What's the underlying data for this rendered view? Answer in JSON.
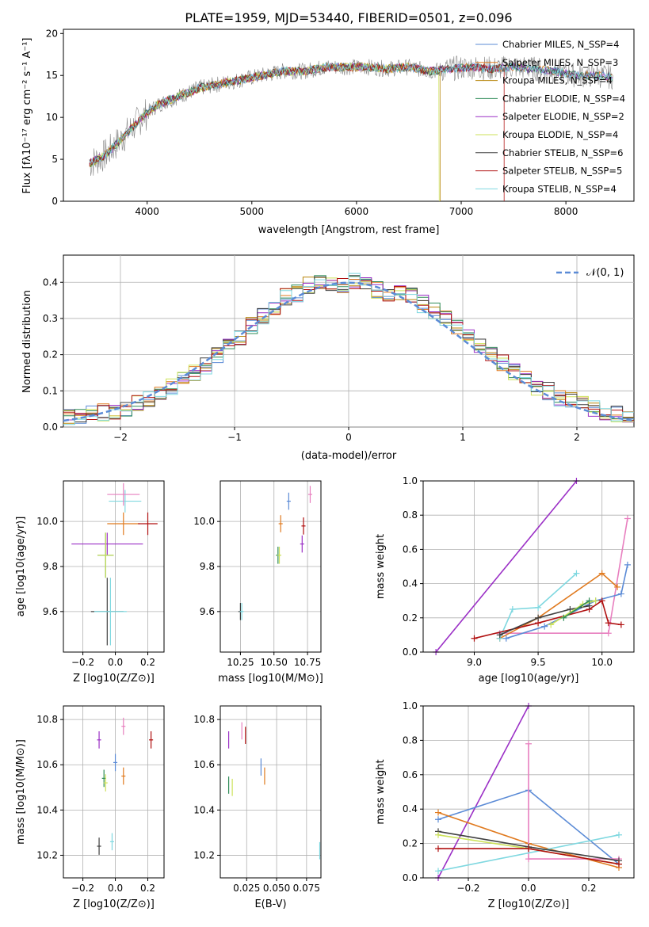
{
  "title": "PLATE=1959, MJD=53440, FIBERID=0501, z=0.096",
  "model_colors": {
    "Chabrier MILES": "#5b8bd6",
    "Salpeter MILES": "#e07a1f",
    "Kroupa MILES": "#b8860b",
    "Chabrier ELODIE": "#2e8b57",
    "Salpeter ELODIE": "#9b30c6",
    "Kroupa ELODIE": "#cde25a",
    "Chabrier STELIB": "#404040",
    "Salpeter STELIB": "#b01010",
    "Kroupa STELIB": "#7fd8e0",
    "Kroupa STELIB (points)": "#e87fbf"
  },
  "chart_data": [
    {
      "type": "line",
      "name": "spectrum",
      "xlabel": "wavelength [Angstrom, rest frame]",
      "ylabel": "Flux [fλ10⁻¹⁷ erg cm⁻² s⁻¹ A⁻¹]",
      "xlim": [
        3200,
        8650
      ],
      "ylim": [
        0,
        20.5
      ],
      "xticks": [
        4000,
        5000,
        6000,
        7000,
        8000
      ],
      "yticks": [
        0,
        5,
        10,
        15,
        20
      ],
      "grid": false,
      "legend_position": "top-right",
      "legend": [
        "Chabrier MILES, N_SSP=4",
        "Salpeter MILES, N_SSP=3",
        "Kroupa MILES, N_SSP=4",
        "Chabrier ELODIE, N_SSP=4",
        "Salpeter ELODIE, N_SSP=2",
        "Kroupa ELODIE, N_SSP=4",
        "Chabrier STELIB, N_SSP=6",
        "Salpeter STELIB, N_SSP=5",
        "Kroupa STELIB, N_SSP=4"
      ],
      "x": [
        3450,
        3600,
        3800,
        3950,
        4100,
        4300,
        4500,
        4700,
        4900,
        5100,
        5300,
        5500,
        5700,
        5900,
        6100,
        6300,
        6500,
        6700,
        6900,
        7100,
        7300,
        7500,
        7700,
        7900,
        8100,
        8300,
        8450
      ],
      "y": [
        4.5,
        5.5,
        8.0,
        10.0,
        11.5,
        12.5,
        13.5,
        14.0,
        14.5,
        15.0,
        15.5,
        15.5,
        16.0,
        16.0,
        16.0,
        15.8,
        16.0,
        15.5,
        15.8,
        16.0,
        15.8,
        16.0,
        15.8,
        15.5,
        15.0,
        15.0,
        14.8
      ]
    },
    {
      "type": "bar",
      "name": "residual histogram",
      "xlabel": "(data-model)/error",
      "ylabel": "Normed distribution",
      "xlim": [
        -2.5,
        2.5
      ],
      "ylim": [
        0,
        0.475
      ],
      "xticks": [
        -2,
        -1,
        0,
        1,
        2
      ],
      "yticks": [
        0.0,
        0.1,
        0.2,
        0.3,
        0.4
      ],
      "grid": true,
      "legend_position": "top-right",
      "legend": [
        "𝒩(0, 1)"
      ],
      "bins": [
        -2.5,
        -2.4,
        -2.3,
        -2.2,
        -2.1,
        -2.0,
        -1.9,
        -1.8,
        -1.7,
        -1.6,
        -1.5,
        -1.4,
        -1.3,
        -1.2,
        -1.1,
        -1.0,
        -0.9,
        -0.8,
        -0.7,
        -0.6,
        -0.5,
        -0.4,
        -0.3,
        -0.2,
        -0.1,
        0.0,
        0.1,
        0.2,
        0.3,
        0.4,
        0.5,
        0.6,
        0.7,
        0.8,
        0.9,
        1.0,
        1.1,
        1.2,
        1.3,
        1.4,
        1.5,
        1.6,
        1.7,
        1.8,
        1.9,
        2.0,
        2.1,
        2.2,
        2.3,
        2.4
      ],
      "density": [
        0.025,
        0.03,
        0.035,
        0.04,
        0.045,
        0.055,
        0.065,
        0.08,
        0.09,
        0.11,
        0.13,
        0.15,
        0.17,
        0.2,
        0.22,
        0.25,
        0.28,
        0.31,
        0.33,
        0.36,
        0.37,
        0.39,
        0.4,
        0.4,
        0.39,
        0.4,
        0.4,
        0.38,
        0.37,
        0.37,
        0.36,
        0.34,
        0.32,
        0.3,
        0.28,
        0.25,
        0.23,
        0.2,
        0.18,
        0.15,
        0.13,
        0.11,
        0.1,
        0.08,
        0.07,
        0.06,
        0.05,
        0.04,
        0.035,
        0.03
      ]
    },
    {
      "type": "scatter",
      "name": "age vs Z",
      "xlabel": "Z [log10(Z/Z⊙)]",
      "ylabel": "age  [log10(age/yr)]",
      "xlim": [
        -0.32,
        0.3
      ],
      "ylim": [
        9.42,
        10.18
      ],
      "xticks": [
        "-0.2",
        "0.0",
        "0.2"
      ],
      "yticks": [
        "9.6",
        "9.8",
        "10.0"
      ],
      "grid": true,
      "points": [
        {
          "model": "Salpeter ELODIE",
          "x": -0.05,
          "y": 9.9,
          "xerr": 0.22,
          "yerr": 0.05
        },
        {
          "model": "Kroupa STELIB",
          "x": 0.06,
          "y": 10.09,
          "xerr": 0.1,
          "yerr": 0.05
        },
        {
          "model": "Kroupa MILES (pink)",
          "x": 0.05,
          "y": 10.12,
          "xerr": 0.1,
          "yerr": 0.05
        },
        {
          "model": "Salpeter MILES",
          "x": 0.05,
          "y": 9.99,
          "xerr": 0.1,
          "yerr": 0.05
        },
        {
          "model": "Salpeter STELIB",
          "x": 0.2,
          "y": 9.99,
          "xerr": 0.06,
          "yerr": 0.05
        },
        {
          "model": "Chabrier ELODIE",
          "x": -0.06,
          "y": 9.85,
          "xerr": 0.05,
          "yerr": 0.1
        },
        {
          "model": "Kroupa ELODIE",
          "x": -0.06,
          "y": 9.85,
          "xerr": 0.05,
          "yerr": 0.1
        },
        {
          "model": "Chabrier STELIB",
          "x": -0.05,
          "y": 9.6,
          "xerr": 0.1,
          "yerr": 0.15
        },
        {
          "model": "Kroupa STELIB (low)",
          "x": -0.03,
          "y": 9.6,
          "xerr": 0.1,
          "yerr": 0.15
        }
      ]
    },
    {
      "type": "scatter",
      "name": "age vs mass",
      "xlabel": "mass [log10(M/M⊙)]",
      "xlim": [
        10.1,
        10.85
      ],
      "ylim": [
        9.42,
        10.18
      ],
      "xticks": [
        "10.25",
        "10.50",
        "10.75"
      ],
      "yticks": [
        "9.6",
        "9.8",
        "10.0"
      ],
      "grid": true,
      "points": [
        {
          "model": "Chabrier STELIB",
          "x": 10.25,
          "y": 9.6
        },
        {
          "model": "Kroupa STELIB",
          "x": 10.26,
          "y": 9.6
        },
        {
          "model": "Chabrier ELODIE",
          "x": 10.53,
          "y": 9.85
        },
        {
          "model": "Kroupa ELODIE",
          "x": 10.54,
          "y": 9.85
        },
        {
          "model": "Salpeter MILES",
          "x": 10.55,
          "y": 9.99
        },
        {
          "model": "Chabrier MILES",
          "x": 10.61,
          "y": 10.09
        },
        {
          "model": "Salpeter STELIB",
          "x": 10.72,
          "y": 9.98
        },
        {
          "model": "Salpeter ELODIE",
          "x": 10.71,
          "y": 9.9
        },
        {
          "model": "Kroupa STELIB (pink)",
          "x": 10.77,
          "y": 10.12
        }
      ]
    },
    {
      "type": "line",
      "name": "mass weight vs age",
      "xlabel": "age  [log10(age/yr)]",
      "ylabel": "mass weight",
      "xlim": [
        8.6,
        10.25
      ],
      "ylim": [
        0,
        1.0
      ],
      "xticks": [
        "9.0",
        "9.5",
        "10.0"
      ],
      "yticks": [
        "0.0",
        "0.2",
        "0.4",
        "0.6",
        "0.8",
        "1.0"
      ],
      "grid": true,
      "series": [
        {
          "model": "Salpeter ELODIE",
          "x": [
            8.7,
            9.8
          ],
          "y": [
            0.0,
            1.0
          ]
        },
        {
          "model": "Kroupa STELIB (pink)",
          "x": [
            9.2,
            10.05,
            10.2
          ],
          "y": [
            0.11,
            0.11,
            0.78
          ]
        },
        {
          "model": "Salpeter MILES",
          "x": [
            9.2,
            9.5,
            10.0,
            10.12
          ],
          "y": [
            0.08,
            0.2,
            0.46,
            0.38
          ]
        },
        {
          "model": "Chabrier MILES",
          "x": [
            9.25,
            9.55,
            9.95,
            10.15,
            10.2
          ],
          "y": [
            0.08,
            0.15,
            0.3,
            0.34,
            0.51
          ]
        },
        {
          "model": "Kroupa STELIB",
          "x": [
            9.2,
            9.3,
            9.5,
            9.8
          ],
          "y": [
            0.08,
            0.25,
            0.26,
            0.46
          ]
        },
        {
          "model": "Salpeter STELIB",
          "x": [
            9.0,
            9.5,
            9.9,
            10.0,
            10.05,
            10.15
          ],
          "y": [
            0.08,
            0.17,
            0.25,
            0.3,
            0.17,
            0.16
          ]
        },
        {
          "model": "Chabrier STELIB",
          "x": [
            9.2,
            9.5,
            9.75,
            9.9
          ],
          "y": [
            0.1,
            0.2,
            0.25,
            0.27
          ]
        },
        {
          "model": "Kroupa ELODIE",
          "x": [
            9.6,
            9.85,
            9.95
          ],
          "y": [
            0.16,
            0.28,
            0.3
          ]
        },
        {
          "model": "Chabrier ELODIE",
          "x": [
            9.7,
            9.9
          ],
          "y": [
            0.2,
            0.3
          ]
        }
      ]
    },
    {
      "type": "scatter",
      "name": "mass vs Z",
      "xlabel": "Z [log10(Z/Z⊙)]",
      "ylabel": "mass [log10(M/M⊙)]",
      "xlim": [
        -0.32,
        0.3
      ],
      "ylim": [
        10.1,
        10.86
      ],
      "xticks": [
        "-0.2",
        "0.0",
        "0.2"
      ],
      "yticks": [
        "10.2",
        "10.4",
        "10.6",
        "10.8"
      ],
      "grid": true,
      "points": [
        {
          "model": "Salpeter ELODIE",
          "x": -0.1,
          "y": 10.71
        },
        {
          "model": "Kroupa STELIB (pink)",
          "x": 0.05,
          "y": 10.77
        },
        {
          "model": "Salpeter STELIB",
          "x": 0.22,
          "y": 10.71
        },
        {
          "model": "Chabrier MILES",
          "x": 0.0,
          "y": 10.61
        },
        {
          "model": "Salpeter MILES",
          "x": 0.05,
          "y": 10.55
        },
        {
          "model": "Chabrier ELODIE",
          "x": -0.07,
          "y": 10.54
        },
        {
          "model": "Kroupa ELODIE",
          "x": -0.06,
          "y": 10.52
        },
        {
          "model": "Kroupa STELIB",
          "x": -0.02,
          "y": 10.26
        },
        {
          "model": "Chabrier STELIB",
          "x": -0.1,
          "y": 10.24
        }
      ]
    },
    {
      "type": "scatter",
      "name": "mass vs E(B-V)",
      "xlabel": "E(B-V)",
      "xlim": [
        0.003,
        0.087
      ],
      "ylim": [
        10.1,
        10.86
      ],
      "xticks": [
        "0.025",
        "0.050",
        "0.075"
      ],
      "yticks": [
        "10.2",
        "10.4",
        "10.6",
        "10.8"
      ],
      "grid": true,
      "points": [
        {
          "model": "Salpeter ELODIE",
          "x": 0.01,
          "y": 10.71
        },
        {
          "model": "Kroupa STELIB (pink)",
          "x": 0.021,
          "y": 10.75
        },
        {
          "model": "Salpeter STELIB",
          "x": 0.024,
          "y": 10.73
        },
        {
          "model": "Chabrier ELODIE",
          "x": 0.01,
          "y": 10.51
        },
        {
          "model": "Kroupa ELODIE",
          "x": 0.013,
          "y": 10.5
        },
        {
          "model": "Chabrier MILES",
          "x": 0.037,
          "y": 10.59
        },
        {
          "model": "Salpeter MILES",
          "x": 0.04,
          "y": 10.55
        },
        {
          "model": "Kroupa STELIB",
          "x": 0.086,
          "y": 10.22
        }
      ]
    },
    {
      "type": "line",
      "name": "mass weight vs Z",
      "xlabel": "Z [log10(Z/Z⊙)]",
      "ylabel": "mass weight",
      "xlim": [
        -0.35,
        0.35
      ],
      "ylim": [
        0,
        1.0
      ],
      "xticks": [
        "-0.2",
        "0.0",
        "0.2"
      ],
      "yticks": [
        "0.0",
        "0.2",
        "0.4",
        "0.6",
        "0.8",
        "1.0"
      ],
      "grid": true,
      "series": [
        {
          "model": "Salpeter ELODIE",
          "x": [
            -0.3,
            0.0
          ],
          "y": [
            0.0,
            1.0
          ]
        },
        {
          "model": "Chabrier MILES",
          "x": [
            -0.3,
            0.0,
            0.3
          ],
          "y": [
            0.34,
            0.51,
            0.08
          ]
        },
        {
          "model": "Salpeter MILES",
          "x": [
            -0.3,
            0.0,
            0.3
          ],
          "y": [
            0.38,
            0.2,
            0.06
          ]
        },
        {
          "model": "Kroupa STELIB (pink)",
          "x": [
            0.0,
            0.0,
            0.3
          ],
          "y": [
            0.78,
            0.11,
            0.11
          ]
        },
        {
          "model": "Kroupa STELIB",
          "x": [
            -0.3,
            0.3
          ],
          "y": [
            0.04,
            0.25
          ]
        },
        {
          "model": "Chabrier STELIB",
          "x": [
            -0.3,
            0.0,
            0.3
          ],
          "y": [
            0.27,
            0.18,
            0.1
          ]
        },
        {
          "model": "Kroupa ELODIE",
          "x": [
            -0.3,
            0.0,
            0.3
          ],
          "y": [
            0.25,
            0.17,
            0.08
          ]
        },
        {
          "model": "Salpeter STELIB",
          "x": [
            -0.3,
            0.0,
            0.3
          ],
          "y": [
            0.17,
            0.17,
            0.08
          ]
        }
      ]
    }
  ]
}
